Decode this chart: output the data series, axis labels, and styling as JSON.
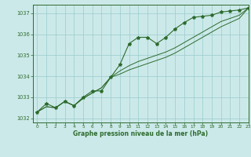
{
  "title": "Graphe pression niveau de la mer (hPa)",
  "background_color": "#cce9e9",
  "line_color": "#2d6b2d",
  "grid_color": "#99cccc",
  "xlim": [
    -0.5,
    23
  ],
  "ylim": [
    1031.8,
    1037.4
  ],
  "yticks": [
    1032,
    1033,
    1034,
    1035,
    1036,
    1037
  ],
  "xticks": [
    0,
    1,
    2,
    3,
    4,
    5,
    6,
    7,
    8,
    9,
    10,
    11,
    12,
    13,
    14,
    15,
    16,
    17,
    18,
    19,
    20,
    21,
    22,
    23
  ],
  "series1_x": [
    0,
    1,
    2,
    3,
    4,
    5,
    6,
    7,
    8,
    9,
    10,
    11,
    12,
    13,
    14,
    15,
    16,
    17,
    18,
    19,
    20,
    21,
    22,
    23
  ],
  "series1_y": [
    1032.3,
    1032.7,
    1032.5,
    1032.8,
    1032.6,
    1033.0,
    1033.3,
    1033.3,
    1033.95,
    1034.55,
    1035.55,
    1035.85,
    1035.85,
    1035.55,
    1035.85,
    1036.25,
    1036.55,
    1036.8,
    1036.85,
    1036.9,
    1037.05,
    1037.1,
    1037.15,
    1037.25
  ],
  "series2_x": [
    0,
    1,
    2,
    3,
    4,
    5,
    6,
    7,
    8,
    9,
    10,
    11,
    12,
    13,
    14,
    15,
    16,
    17,
    18,
    19,
    20,
    21,
    22,
    23
  ],
  "series2_y": [
    1032.3,
    1032.55,
    1032.5,
    1032.8,
    1032.6,
    1032.95,
    1033.2,
    1033.45,
    1033.95,
    1034.25,
    1034.5,
    1034.7,
    1034.85,
    1035.0,
    1035.15,
    1035.35,
    1035.6,
    1035.85,
    1036.1,
    1036.35,
    1036.6,
    1036.75,
    1036.9,
    1037.25
  ],
  "series3_x": [
    0,
    1,
    2,
    3,
    4,
    5,
    6,
    7,
    8,
    9,
    10,
    11,
    12,
    13,
    14,
    15,
    16,
    17,
    18,
    19,
    20,
    21,
    22,
    23
  ],
  "series3_y": [
    1032.3,
    1032.55,
    1032.5,
    1032.8,
    1032.6,
    1032.95,
    1033.2,
    1033.45,
    1033.95,
    1034.1,
    1034.3,
    1034.45,
    1034.6,
    1034.75,
    1034.9,
    1035.1,
    1035.35,
    1035.6,
    1035.85,
    1036.1,
    1036.35,
    1036.55,
    1036.75,
    1037.25
  ]
}
